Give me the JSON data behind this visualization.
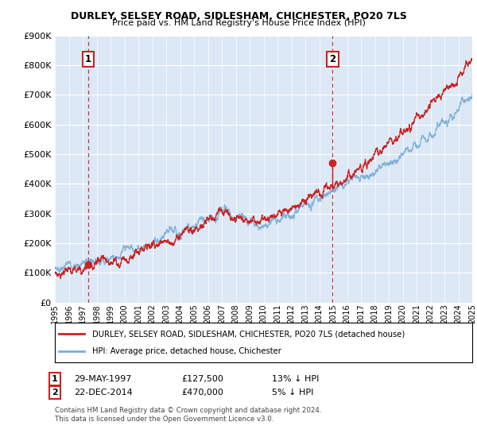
{
  "title": "DURLEY, SELSEY ROAD, SIDLESHAM, CHICHESTER, PO20 7LS",
  "subtitle": "Price paid vs. HM Land Registry's House Price Index (HPI)",
  "legend_line1": "DURLEY, SELSEY ROAD, SIDLESHAM, CHICHESTER, PO20 7LS (detached house)",
  "legend_line2": "HPI: Average price, detached house, Chichester",
  "annotation1_label": "1",
  "annotation1_date": "29-MAY-1997",
  "annotation1_price": "£127,500",
  "annotation1_hpi": "13% ↓ HPI",
  "annotation1_year": 1997.4,
  "annotation1_value": 127500,
  "annotation2_label": "2",
  "annotation2_date": "22-DEC-2014",
  "annotation2_price": "£470,000",
  "annotation2_hpi": "5% ↓ HPI",
  "annotation2_year": 2014.97,
  "annotation2_value": 470000,
  "ylim": [
    0,
    900000
  ],
  "xlim_start": 1995,
  "xlim_end": 2025,
  "fig_bg_color": "#ffffff",
  "plot_bg_color": "#dce8f5",
  "hpi_line_color": "#7aadd4",
  "property_line_color": "#cc2222",
  "dashed_line_color": "#cc2222",
  "grid_color": "#ffffff",
  "footer_text": "Contains HM Land Registry data © Crown copyright and database right 2024.\nThis data is licensed under the Open Government Licence v3.0."
}
